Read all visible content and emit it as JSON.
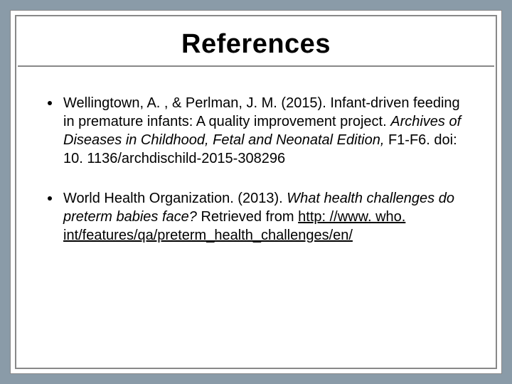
{
  "slide": {
    "background_color": "#8a9ba8",
    "panel_color": "#ffffff",
    "border_color": "#888888",
    "text_color": "#000000",
    "title": "References",
    "title_fontsize": 38,
    "body_fontsize": 20,
    "line_height": 1.3,
    "references": [
      {
        "pre": "Wellingtown, A. , & Perlman, J. M. (2015). Infant-driven feeding in premature infants: A quality improvement project. ",
        "italic": "Archives of Diseases in Childhood, Fetal and Neonatal Edition, ",
        "post": "F1-F6. doi: 10. 1136/archdischild-2015-308296"
      },
      {
        "pre": "World Health Organization. (2013). ",
        "italic": "What health challenges do preterm babies face? ",
        "post": "Retrieved from ",
        "link": "http: //www. who. int/features/qa/preterm_health_challenges/en/"
      }
    ]
  }
}
